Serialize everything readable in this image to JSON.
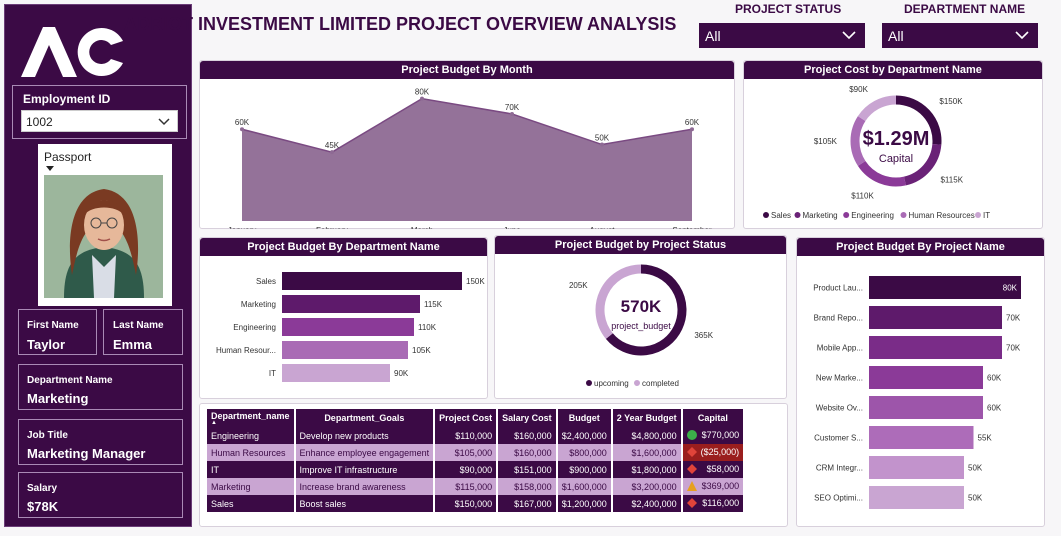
{
  "title": "ADRIOT INVESTMENT LIMITED PROJECT OVERVIEW ANALYSIS",
  "sidebar": {
    "employment_id_label": "Employment ID",
    "employment_id_value": "1002",
    "passport_label": "Passport",
    "first_name_label": "First Name",
    "first_name": "Taylor",
    "last_name_label": "Last Name",
    "last_name": "Emma",
    "department_label": "Department Name",
    "department": "Marketing",
    "job_title_label": "Job Title",
    "job_title": "Marketing Manager",
    "salary_label": "Salary",
    "salary": "$78K"
  },
  "filters": {
    "project_status_label": "PROJECT STATUS",
    "project_status_value": "All",
    "department_label": "DEPARTMENT NAME",
    "department_value": "All"
  },
  "panels": {
    "budget_by_month": "Project Budget By Month",
    "cost_by_dept": "Project Cost by Department Name",
    "budget_by_dept": "Project Budget By Department Name",
    "budget_by_status": "Project Budget by Project Status",
    "budget_by_project": "Project Budget By Project Name"
  },
  "chart_data": [
    {
      "type": "area",
      "title": "Project Budget By Month",
      "categories": [
        "January",
        "February",
        "March",
        "June",
        "August",
        "September"
      ],
      "values": [
        60,
        45,
        80,
        70,
        50,
        60
      ],
      "labels": [
        "60K",
        "45K",
        "80K",
        "70K",
        "50K",
        "60K"
      ],
      "color": "#8e6a94"
    },
    {
      "type": "pie",
      "title": "Project Cost by Department Name",
      "center_value": "$1.29M",
      "center_label": "Capital",
      "categories": [
        "Sales",
        "Marketing",
        "Engineering",
        "Human Resources",
        "IT"
      ],
      "values": [
        150,
        115,
        110,
        105,
        90
      ],
      "labels": [
        "$150K",
        "$115K",
        "$110K",
        "$105K",
        "$90K"
      ],
      "colors": [
        "#3b0a45",
        "#6a2277",
        "#8b3a98",
        "#a96bb5",
        "#c9a5d2"
      ]
    },
    {
      "type": "bar",
      "title": "Project Budget By Department Name",
      "categories": [
        "Sales",
        "Marketing",
        "Engineering",
        "Human Resour...",
        "IT"
      ],
      "values": [
        150,
        115,
        110,
        105,
        90
      ],
      "labels": [
        "150K",
        "115K",
        "110K",
        "105K",
        "90K"
      ],
      "colors": [
        "#3b0a45",
        "#5e1a6b",
        "#8b3a98",
        "#a96bb5",
        "#c9a5d2"
      ]
    },
    {
      "type": "pie",
      "title": "Project Budget by Project Status",
      "center_value": "570K",
      "center_label": "project_budget",
      "categories": [
        "upcoming",
        "completed"
      ],
      "values": [
        365,
        205
      ],
      "labels": [
        "365K",
        "205K"
      ],
      "colors": [
        "#3b0a45",
        "#c9a5d2"
      ]
    },
    {
      "type": "bar",
      "title": "Project Budget By Project Name",
      "categories": [
        "Product Lau...",
        "Brand Repo...",
        "Mobile App...",
        "New Marke...",
        "Website Ov...",
        "Customer S...",
        "CRM Integr...",
        "SEO Optimi..."
      ],
      "values": [
        80,
        70,
        70,
        60,
        60,
        55,
        50,
        50
      ],
      "labels": [
        "80K",
        "70K",
        "70K",
        "60K",
        "60K",
        "55K",
        "50K",
        "50K"
      ],
      "colors": [
        "#3b0a45",
        "#5e1a6b",
        "#7a2c88",
        "#8b3a98",
        "#9d55aa",
        "#ad6cb9",
        "#c293cc",
        "#c9a5d2"
      ]
    }
  ],
  "table": {
    "headers": [
      "Department_name",
      "Department_Goals",
      "Project Cost",
      "Salary Cost",
      "Budget",
      "2 Year Budget",
      "Capital"
    ],
    "rows": [
      {
        "style": "dark",
        "cells": [
          "Engineering",
          "Develop new products",
          "$110,000",
          "$160,000",
          "$2,400,000",
          "$4,800,000",
          "$770,000"
        ],
        "icon": "green-circle"
      },
      {
        "style": "light",
        "cells": [
          "Human Resources",
          "Enhance employee engagement",
          "$105,000",
          "$160,000",
          "$800,000",
          "$1,600,000",
          "($25,000)"
        ],
        "icon": "red-diamond"
      },
      {
        "style": "dark",
        "cells": [
          "IT",
          "Improve IT infrastructure",
          "$90,000",
          "$151,000",
          "$900,000",
          "$1,800,000",
          "$58,000"
        ],
        "icon": "red-diamond"
      },
      {
        "style": "light",
        "cells": [
          "Marketing",
          "Increase brand awareness",
          "$115,000",
          "$158,000",
          "$1,600,000",
          "$3,200,000",
          "$369,000"
        ],
        "icon": "yellow-triangle"
      },
      {
        "style": "dark",
        "cells": [
          "Sales",
          "Boost sales",
          "$150,000",
          "$167,000",
          "$1,200,000",
          "$2,400,000",
          "$116,000"
        ],
        "icon": "red-diamond"
      }
    ]
  }
}
